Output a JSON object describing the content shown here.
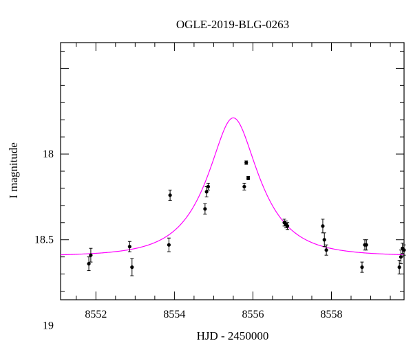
{
  "chart_data": {
    "type": "scatter",
    "title": "OGLE-2019-BLG-0263",
    "xlabel": "HJD - 2450000",
    "ylabel": "I magnitude",
    "xlim": [
      8551.1,
      8559.85
    ],
    "ylim": [
      18.85,
      17.35
    ],
    "y_inverted": true,
    "x_ticks": [
      8552,
      8554,
      8556,
      8558
    ],
    "y_ticks": [
      18,
      18.5,
      19
    ],
    "y_tick_labels": [
      "18",
      "18.5",
      "19"
    ],
    "colors": {
      "points": "#000000",
      "model": "#ff00ff",
      "frame": "#000000"
    },
    "series": [
      {
        "kind": "points-with-errorbars",
        "x": [
          8551.82,
          8551.87,
          8552.86,
          8552.92,
          8553.86,
          8553.89,
          8554.78,
          8554.82,
          8554.86,
          8555.78,
          8555.83,
          8555.88,
          8556.8,
          8556.84,
          8556.88,
          8557.78,
          8557.82,
          8557.87,
          8558.78,
          8558.85,
          8558.89,
          8559.73,
          8559.77,
          8559.81,
          8559.85
        ],
        "y": [
          18.64,
          18.59,
          18.54,
          18.66,
          18.53,
          18.24,
          18.32,
          18.22,
          18.19,
          18.19,
          18.05,
          18.14,
          18.4,
          18.41,
          18.42,
          18.42,
          18.5,
          18.56,
          18.66,
          18.53,
          18.53,
          18.66,
          18.6,
          18.55,
          18.56
        ],
        "err": [
          0.04,
          0.04,
          0.03,
          0.05,
          0.04,
          0.03,
          0.03,
          0.03,
          0.02,
          0.02,
          0.01,
          0.01,
          0.02,
          0.02,
          0.02,
          0.04,
          0.04,
          0.03,
          0.03,
          0.03,
          0.03,
          0.04,
          0.04,
          0.03,
          0.03
        ]
      },
      {
        "kind": "model-curve",
        "baseline": 18.595,
        "t0": 8555.5,
        "tE": 1.2,
        "u0": 0.46,
        "fs": 0.82
      }
    ]
  }
}
